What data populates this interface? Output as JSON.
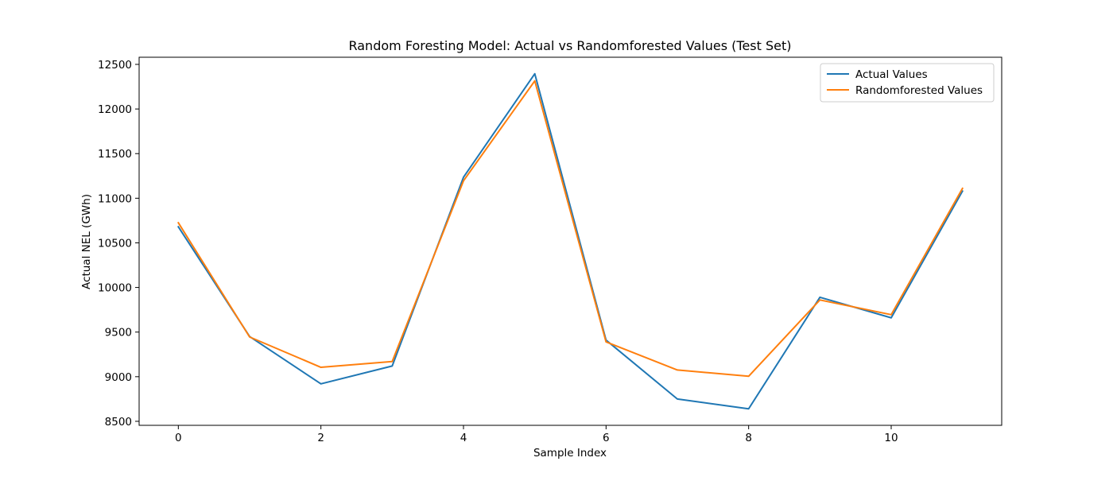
{
  "chart_data": {
    "type": "line",
    "title": "Random Foresting Model: Actual vs Randomforested Values (Test Set)",
    "xlabel": "Sample Index",
    "ylabel": "Actual NEL (GWh)",
    "x": [
      0,
      1,
      2,
      3,
      4,
      5,
      6,
      7,
      8,
      9,
      10,
      11
    ],
    "xlim": [
      -0.55,
      11.55
    ],
    "ylim": [
      8455,
      12580
    ],
    "xticks": [
      0,
      2,
      4,
      6,
      8,
      10
    ],
    "yticks": [
      8500,
      9000,
      9500,
      10000,
      10500,
      11000,
      11500,
      12000,
      12500
    ],
    "grid": false,
    "legend_position": "top-right",
    "series": [
      {
        "name": "Actual Values",
        "color": "#1f77b4",
        "values": [
          10680,
          9450,
          8920,
          9120,
          11235,
          12395,
          9410,
          8750,
          8640,
          9890,
          9660,
          11080
        ]
      },
      {
        "name": "Randomforested Values",
        "color": "#ff7f0e",
        "values": [
          10725,
          9445,
          9105,
          9170,
          11195,
          12315,
          9390,
          9075,
          9005,
          9860,
          9695,
          11110
        ]
      }
    ]
  }
}
